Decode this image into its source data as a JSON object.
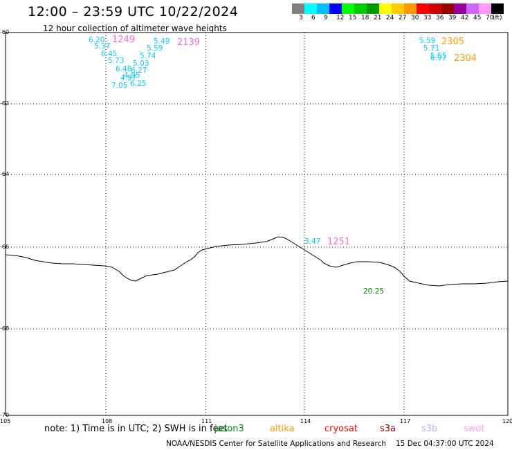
{
  "title": "12:00 – 23:59 UTC 10/22/2024",
  "subtitle": "12 hour collection of altimeter wave heights",
  "colorbar": {
    "colors": [
      "#808080",
      "#00ffff",
      "#00bfff",
      "#0000ff",
      "#00ff00",
      "#00cc00",
      "#009900",
      "#ffff00",
      "#ffcc00",
      "#ff9900",
      "#ff0000",
      "#cc0000",
      "#990000",
      "#990099",
      "#cc66ff",
      "#ff99ff",
      "#000000"
    ],
    "labels": [
      "3",
      "6",
      "9",
      "12",
      "15",
      "18",
      "21",
      "24",
      "27",
      "30",
      "33",
      "36",
      "39",
      "42",
      "45",
      "70"
    ],
    "unit": "(ft)"
  },
  "axes": {
    "lat_labels": [
      "-60",
      "-62",
      "-64",
      "-66",
      "-68",
      "-70"
    ],
    "lon_labels": [
      "105",
      "108",
      "111",
      "114",
      "117",
      "120"
    ]
  },
  "wave_labels": [
    {
      "text": "6.20",
      "color": "#00ccff"
    },
    {
      "text": "5.37",
      "color": "#00ccff"
    },
    {
      "text": "6.45",
      "color": "#00ccff"
    },
    {
      "text": "5.73",
      "color": "#00ccff"
    },
    {
      "text": "6.48",
      "color": "#00ccff"
    },
    {
      "text": "4.97",
      "color": "#00ccff"
    },
    {
      "text": "7.05",
      "color": "#00ccff"
    },
    {
      "text": "5.49",
      "color": "#00ccff"
    },
    {
      "text": "5.59",
      "color": "#00ccff"
    },
    {
      "text": "5.74",
      "color": "#00ccff"
    },
    {
      "text": "5.03",
      "color": "#00ccff"
    },
    {
      "text": "6.27",
      "color": "#00ccff"
    },
    {
      "text": "4.95",
      "color": "#00ccff"
    },
    {
      "text": "6.25",
      "color": "#00ccff"
    },
    {
      "text": "5.59",
      "color": "#00ccff"
    },
    {
      "text": "5.71",
      "color": "#00ccff"
    },
    {
      "text": "5.55",
      "color": "#00ccff"
    },
    {
      "text": "6.97",
      "color": "#00ccff"
    },
    {
      "text": "3.47",
      "color": "#00ccff"
    },
    {
      "text": "20.25",
      "color": "#008800"
    }
  ],
  "time_labels": [
    {
      "text": "1249",
      "color": "#ff66cc"
    },
    {
      "text": "2139",
      "color": "#ff66cc"
    },
    {
      "text": "1251",
      "color": "#ff66cc"
    },
    {
      "text": "2305",
      "color": "#ff9900"
    },
    {
      "text": "2304",
      "color": "#ff9900"
    }
  ],
  "note": "note: 1) Time is in UTC; 2) SWH is in feet",
  "satellites": [
    {
      "name": "jason3",
      "color": "#008800"
    },
    {
      "name": "altika",
      "color": "#ff9900"
    },
    {
      "name": "cryosat",
      "color": "#ff0000"
    },
    {
      "name": "s3a",
      "color": "#990000"
    },
    {
      "name": "s3b",
      "color": "#bbaaff"
    },
    {
      "name": "swot",
      "color": "#ff99ff"
    }
  ],
  "footer": {
    "org": "NOAA/NESDIS Center for Satellite Applications and Research",
    "timestamp": "15 Dec 04:37:00 UTC 2024"
  }
}
